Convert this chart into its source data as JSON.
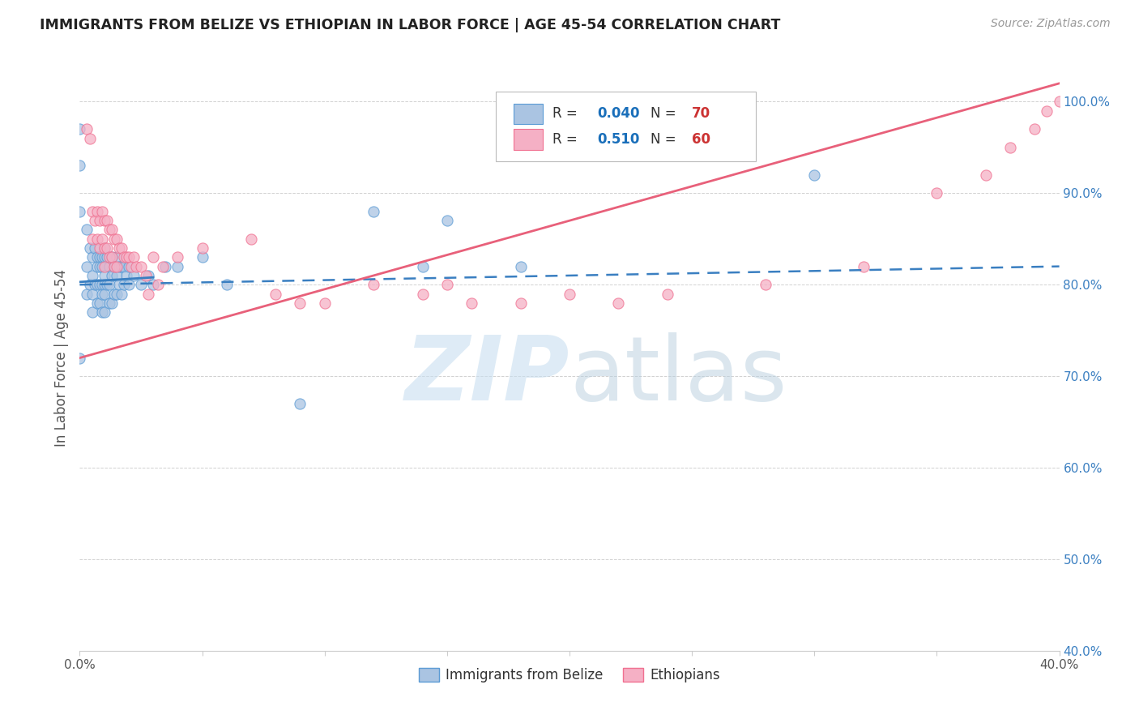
{
  "title": "IMMIGRANTS FROM BELIZE VS ETHIOPIAN IN LABOR FORCE | AGE 45-54 CORRELATION CHART",
  "source": "Source: ZipAtlas.com",
  "ylabel": "In Labor Force | Age 45-54",
  "xlim": [
    0.0,
    0.4
  ],
  "ylim": [
    0.4,
    1.04
  ],
  "xticks": [
    0.0,
    0.05,
    0.1,
    0.15,
    0.2,
    0.25,
    0.3,
    0.35,
    0.4
  ],
  "yticks": [
    0.4,
    0.5,
    0.6,
    0.7,
    0.8,
    0.9,
    1.0
  ],
  "ytick_labels": [
    "40.0%",
    "50.0%",
    "60.0%",
    "70.0%",
    "80.0%",
    "90.0%",
    "100.0%"
  ],
  "xtick_labels": [
    "0.0%",
    "",
    "",
    "",
    "",
    "",
    "",
    "",
    "40.0%"
  ],
  "belize_color": "#aac4e2",
  "ethiopian_color": "#f5b0c5",
  "belize_edge_color": "#5b9bd5",
  "ethiopian_edge_color": "#f07090",
  "belize_line_color": "#3a7fc1",
  "ethiopian_line_color": "#e8607a",
  "belize_R": 0.04,
  "belize_N": 70,
  "ethiopian_R": 0.51,
  "ethiopian_N": 60,
  "legend_label_color": "#333333",
  "legend_R_color": "#1a6fba",
  "legend_N_color": "#cc3333",
  "belize_scatter_x": [
    0.0,
    0.0,
    0.0,
    0.0,
    0.003,
    0.003,
    0.003,
    0.004,
    0.004,
    0.005,
    0.005,
    0.005,
    0.005,
    0.006,
    0.006,
    0.007,
    0.007,
    0.007,
    0.007,
    0.008,
    0.008,
    0.008,
    0.008,
    0.009,
    0.009,
    0.009,
    0.009,
    0.009,
    0.01,
    0.01,
    0.01,
    0.01,
    0.01,
    0.01,
    0.011,
    0.011,
    0.012,
    0.012,
    0.012,
    0.013,
    0.013,
    0.013,
    0.014,
    0.014,
    0.015,
    0.015,
    0.015,
    0.016,
    0.016,
    0.017,
    0.017,
    0.018,
    0.018,
    0.019,
    0.02,
    0.02,
    0.022,
    0.025,
    0.028,
    0.03,
    0.035,
    0.04,
    0.05,
    0.06,
    0.09,
    0.12,
    0.14,
    0.15,
    0.18,
    0.3
  ],
  "belize_scatter_y": [
    0.97,
    0.93,
    0.88,
    0.72,
    0.86,
    0.82,
    0.79,
    0.84,
    0.8,
    0.83,
    0.81,
    0.79,
    0.77,
    0.84,
    0.8,
    0.83,
    0.82,
    0.8,
    0.78,
    0.83,
    0.82,
    0.8,
    0.78,
    0.83,
    0.82,
    0.8,
    0.79,
    0.77,
    0.84,
    0.83,
    0.81,
    0.8,
    0.79,
    0.77,
    0.83,
    0.8,
    0.82,
    0.8,
    0.78,
    0.83,
    0.81,
    0.78,
    0.82,
    0.79,
    0.83,
    0.81,
    0.79,
    0.82,
    0.8,
    0.82,
    0.79,
    0.82,
    0.8,
    0.81,
    0.82,
    0.8,
    0.81,
    0.8,
    0.81,
    0.8,
    0.82,
    0.82,
    0.83,
    0.8,
    0.67,
    0.88,
    0.82,
    0.87,
    0.82,
    0.92
  ],
  "ethiopian_scatter_x": [
    0.003,
    0.004,
    0.005,
    0.005,
    0.006,
    0.007,
    0.007,
    0.008,
    0.008,
    0.009,
    0.009,
    0.01,
    0.01,
    0.01,
    0.011,
    0.011,
    0.012,
    0.012,
    0.013,
    0.013,
    0.014,
    0.014,
    0.015,
    0.015,
    0.016,
    0.017,
    0.018,
    0.019,
    0.02,
    0.021,
    0.022,
    0.023,
    0.025,
    0.027,
    0.028,
    0.03,
    0.032,
    0.034,
    0.04,
    0.05,
    0.07,
    0.08,
    0.09,
    0.1,
    0.12,
    0.14,
    0.15,
    0.16,
    0.18,
    0.2,
    0.22,
    0.24,
    0.28,
    0.32,
    0.35,
    0.37,
    0.38,
    0.39,
    0.395,
    0.4
  ],
  "ethiopian_scatter_y": [
    0.97,
    0.96,
    0.88,
    0.85,
    0.87,
    0.88,
    0.85,
    0.87,
    0.84,
    0.88,
    0.85,
    0.87,
    0.84,
    0.82,
    0.87,
    0.84,
    0.86,
    0.83,
    0.86,
    0.83,
    0.85,
    0.82,
    0.85,
    0.82,
    0.84,
    0.84,
    0.83,
    0.83,
    0.83,
    0.82,
    0.83,
    0.82,
    0.82,
    0.81,
    0.79,
    0.83,
    0.8,
    0.82,
    0.83,
    0.84,
    0.85,
    0.79,
    0.78,
    0.78,
    0.8,
    0.79,
    0.8,
    0.78,
    0.78,
    0.79,
    0.78,
    0.79,
    0.8,
    0.82,
    0.9,
    0.92,
    0.95,
    0.97,
    0.99,
    1.0
  ]
}
